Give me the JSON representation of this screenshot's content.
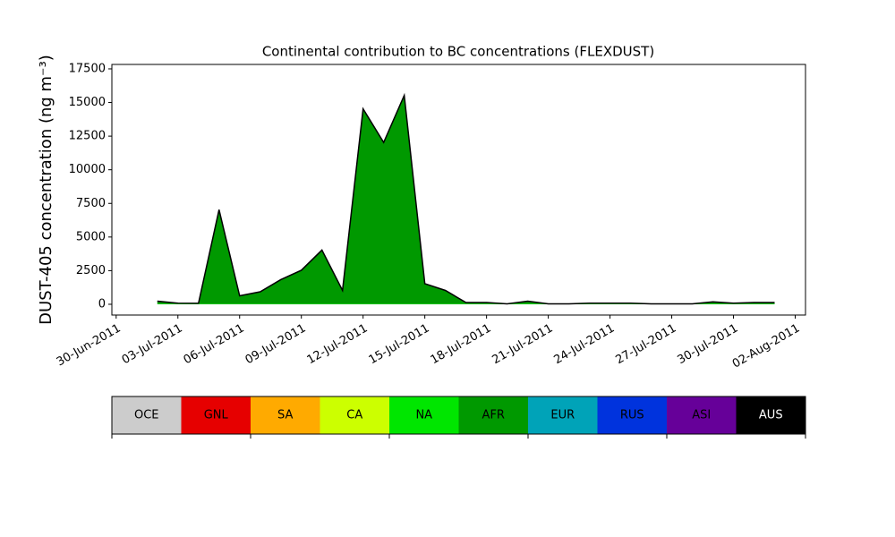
{
  "chart_data": {
    "type": "stacked_area",
    "title": "Continental contribution to BC concentrations (FLEXDUST)",
    "y_label": "DUST-405 concentration (ng m⁻³)",
    "x": [
      "2011-07-02",
      "2011-07-03",
      "2011-07-04",
      "2011-07-05",
      "2011-07-06",
      "2011-07-07",
      "2011-07-08",
      "2011-07-09",
      "2011-07-10",
      "2011-07-11",
      "2011-07-12",
      "2011-07-13",
      "2011-07-14",
      "2011-07-15",
      "2011-07-16",
      "2011-07-17",
      "2011-07-18",
      "2011-07-19",
      "2011-07-20",
      "2011-07-21",
      "2011-07-22",
      "2011-07-23",
      "2011-07-24",
      "2011-07-25",
      "2011-07-26",
      "2011-07-27",
      "2011-07-28",
      "2011-07-29",
      "2011-07-30",
      "2011-07-31",
      "2011-08-01"
    ],
    "series": [
      {
        "name": "OCE",
        "color": "#cccccc",
        "values": [
          0,
          0,
          0,
          0,
          0,
          0,
          0,
          0,
          0,
          0,
          0,
          0,
          0,
          0,
          0,
          0,
          0,
          0,
          0,
          0,
          0,
          0,
          0,
          0,
          0,
          0,
          0,
          0,
          0,
          0,
          0
        ]
      },
      {
        "name": "GNL",
        "color": "#e60000",
        "values": [
          0,
          0,
          0,
          0,
          0,
          0,
          0,
          0,
          0,
          0,
          0,
          0,
          0,
          0,
          0,
          0,
          0,
          0,
          0,
          0,
          0,
          0,
          0,
          0,
          0,
          0,
          0,
          0,
          0,
          0,
          0
        ]
      },
      {
        "name": "SA",
        "color": "#ffaa00",
        "values": [
          0,
          0,
          0,
          0,
          0,
          0,
          0,
          0,
          0,
          0,
          0,
          0,
          0,
          0,
          0,
          0,
          0,
          0,
          0,
          0,
          0,
          0,
          0,
          0,
          0,
          0,
          0,
          0,
          0,
          0,
          0
        ]
      },
      {
        "name": "CA",
        "color": "#ccff00",
        "values": [
          0,
          0,
          0,
          0,
          0,
          0,
          0,
          0,
          0,
          0,
          0,
          0,
          0,
          0,
          0,
          0,
          0,
          0,
          0,
          0,
          0,
          0,
          0,
          0,
          0,
          0,
          0,
          0,
          0,
          0,
          0
        ]
      },
      {
        "name": "NA",
        "color": "#00e600",
        "values": [
          30,
          30,
          30,
          30,
          30,
          30,
          30,
          30,
          30,
          30,
          30,
          30,
          30,
          30,
          30,
          30,
          30,
          30,
          30,
          30,
          30,
          30,
          30,
          30,
          30,
          30,
          30,
          30,
          30,
          30,
          30
        ]
      },
      {
        "name": "AFR",
        "color": "#009900",
        "values": [
          200,
          50,
          40,
          7000,
          600,
          900,
          1800,
          2500,
          4000,
          1000,
          14500,
          12000,
          15500,
          1500,
          1000,
          100,
          100,
          0,
          200,
          0,
          0,
          50,
          50,
          50,
          0,
          0,
          0,
          150,
          50,
          100,
          100
        ]
      },
      {
        "name": "EUR",
        "color": "#00a3b8",
        "values": [
          0,
          0,
          0,
          0,
          0,
          0,
          0,
          0,
          0,
          0,
          0,
          0,
          0,
          0,
          0,
          0,
          0,
          0,
          0,
          0,
          0,
          0,
          0,
          0,
          0,
          0,
          0,
          0,
          0,
          0,
          0
        ]
      },
      {
        "name": "RUS",
        "color": "#0033dd",
        "values": [
          0,
          0,
          0,
          0,
          0,
          0,
          0,
          0,
          0,
          0,
          0,
          0,
          0,
          0,
          0,
          0,
          0,
          0,
          0,
          0,
          0,
          0,
          0,
          0,
          0,
          0,
          0,
          0,
          0,
          0,
          0
        ]
      },
      {
        "name": "ASI",
        "color": "#660099",
        "values": [
          0,
          0,
          0,
          0,
          0,
          0,
          0,
          0,
          0,
          0,
          0,
          0,
          0,
          0,
          0,
          0,
          0,
          0,
          0,
          0,
          0,
          0,
          0,
          0,
          0,
          0,
          0,
          0,
          0,
          0,
          0
        ]
      },
      {
        "name": "AUS",
        "color": "#000000",
        "values": [
          0,
          0,
          0,
          0,
          0,
          0,
          0,
          0,
          0,
          0,
          0,
          0,
          0,
          0,
          0,
          0,
          0,
          0,
          0,
          0,
          0,
          0,
          0,
          0,
          0,
          0,
          0,
          0,
          0,
          0,
          0
        ]
      }
    ],
    "xlim": [
      "2011-06-29T19:00",
      "2011-08-02T12:00"
    ],
    "xticks": [
      {
        "value": "2011-06-30",
        "label": "30-Jun-2011"
      },
      {
        "value": "2011-07-03",
        "label": "03-Jul-2011"
      },
      {
        "value": "2011-07-06",
        "label": "06-Jul-2011"
      },
      {
        "value": "2011-07-09",
        "label": "09-Jul-2011"
      },
      {
        "value": "2011-07-12",
        "label": "12-Jul-2011"
      },
      {
        "value": "2011-07-15",
        "label": "15-Jul-2011"
      },
      {
        "value": "2011-07-18",
        "label": "18-Jul-2011"
      },
      {
        "value": "2011-07-21",
        "label": "21-Jul-2011"
      },
      {
        "value": "2011-07-24",
        "label": "24-Jul-2011"
      },
      {
        "value": "2011-07-27",
        "label": "27-Jul-2011"
      },
      {
        "value": "2011-07-30",
        "label": "30-Jul-2011"
      },
      {
        "value": "2011-08-02",
        "label": "02-Aug-2011"
      }
    ],
    "ylim": [
      -800,
      17830
    ],
    "yticks": [
      0,
      2500,
      5000,
      7500,
      10000,
      12500,
      15000,
      17500
    ]
  }
}
